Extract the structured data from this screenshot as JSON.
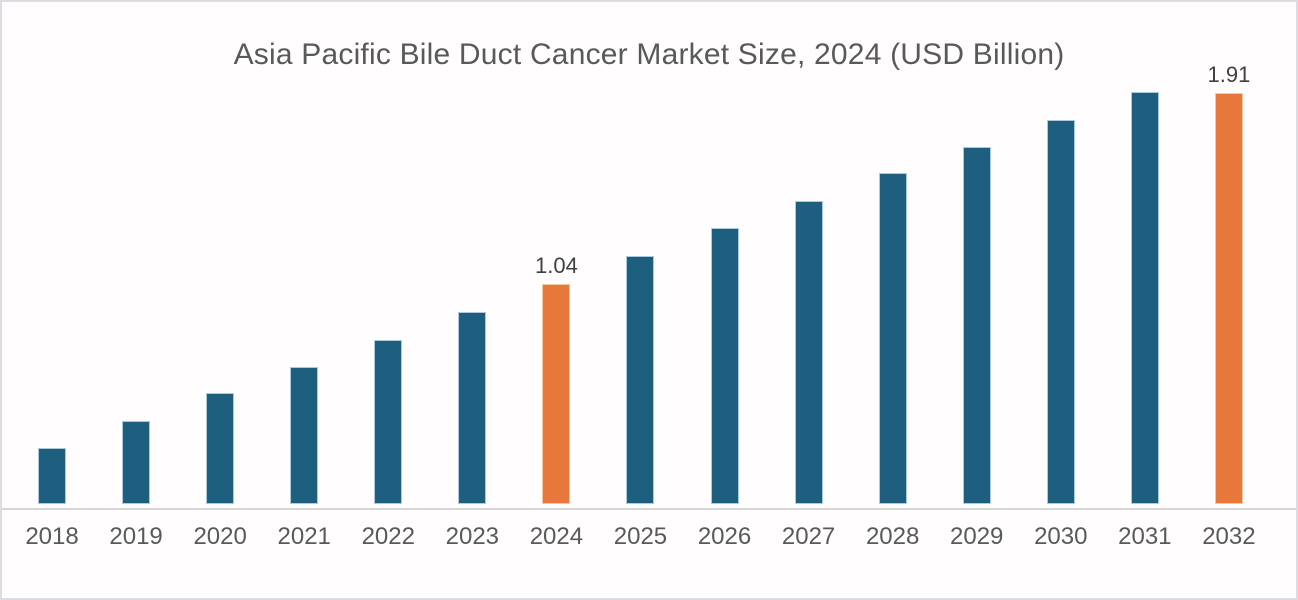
{
  "chart_data": {
    "type": "bar",
    "title": "Asia Pacific Bile Duct Cancer Market Size, 2024 (USD Billion)",
    "categories": [
      "2018",
      "2019",
      "2020",
      "2021",
      "2022",
      "2023",
      "2024",
      "2025",
      "2026",
      "2027",
      "2028",
      "2029",
      "2030",
      "2031",
      "2032"
    ],
    "values": [
      0.39,
      0.5,
      0.61,
      0.71,
      0.82,
      0.93,
      1.04,
      1.15,
      1.26,
      1.37,
      1.48,
      1.58,
      1.69,
      1.8,
      1.91
    ],
    "data_labels": {
      "2024": "1.04",
      "2032": "1.91"
    },
    "highlighted_categories": [
      "2024",
      "2032"
    ],
    "xlabel": "",
    "ylabel": "",
    "legend": null,
    "gridlines": false,
    "y_axis_visible": false,
    "axis_implied_min": 0.17,
    "colors": {
      "bar": "#1e5f80",
      "bar_highlight": "#e7773a",
      "axis_line": "#d6d6d6",
      "title_text": "#595959",
      "axis_text": "#595959",
      "data_label_text": "#404040"
    }
  }
}
